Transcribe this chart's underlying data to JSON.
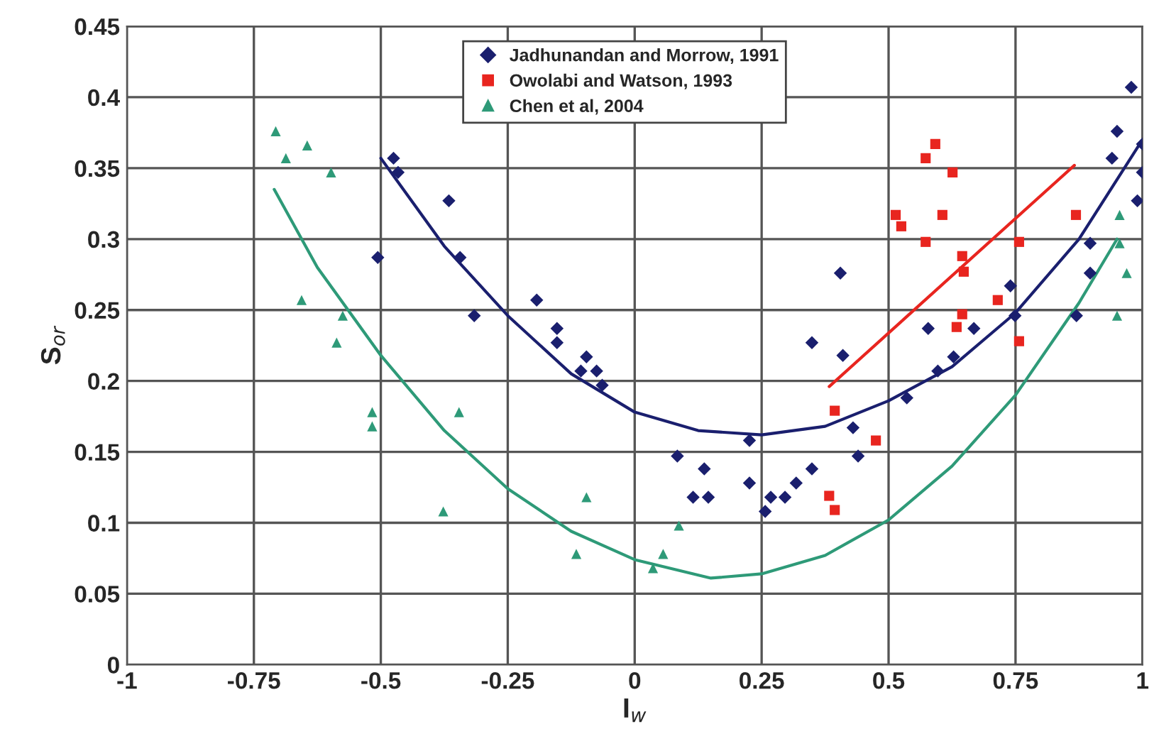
{
  "chart_data": {
    "type": "scatter",
    "xlabel": "I$_{w}$",
    "ylabel": "S$_{or}$",
    "xlim": [
      -1,
      1
    ],
    "ylim": [
      0,
      0.45
    ],
    "xticks": [
      -1,
      -0.75,
      -0.5,
      -0.25,
      0,
      0.25,
      0.5,
      0.75,
      1
    ],
    "yticks": [
      0,
      0.05,
      0.1,
      0.15,
      0.2,
      0.25,
      0.3,
      0.35,
      0.4,
      0.45
    ],
    "grid": true,
    "legend": "top",
    "series": [
      {
        "name": "Jadhunandan and Morrow, 1991",
        "color": "#1a1f6e",
        "marker": "diamond",
        "x": [
          -0.475,
          -0.466,
          -0.506,
          -0.366,
          -0.344,
          -0.316,
          -0.193,
          -0.153,
          -0.153,
          -0.095,
          -0.106,
          -0.075,
          -0.064,
          0.084,
          0.137,
          0.115,
          0.145,
          0.226,
          0.226,
          0.257,
          0.268,
          0.296,
          0.318,
          0.349,
          0.405,
          0.349,
          0.41,
          0.43,
          0.44,
          0.536,
          0.578,
          0.597,
          0.628,
          0.668,
          0.74,
          0.749,
          0.87,
          0.897,
          0.897,
          0.94,
          0.95,
          0.978,
          1.0,
          1.0,
          0.99
        ],
        "values": [
          0.357,
          0.347,
          0.287,
          0.327,
          0.287,
          0.246,
          0.257,
          0.237,
          0.227,
          0.217,
          0.207,
          0.207,
          0.197,
          0.147,
          0.138,
          0.118,
          0.118,
          0.158,
          0.128,
          0.108,
          0.118,
          0.118,
          0.128,
          0.138,
          0.276,
          0.227,
          0.218,
          0.167,
          0.147,
          0.188,
          0.237,
          0.207,
          0.217,
          0.237,
          0.267,
          0.246,
          0.246,
          0.297,
          0.276,
          0.357,
          0.376,
          0.407,
          0.367,
          0.347,
          0.327
        ]
      },
      {
        "name": "Owolabi and Watson, 1993",
        "color": "#e8251f",
        "marker": "square",
        "x": [
          0.592,
          0.573,
          0.626,
          0.514,
          0.525,
          0.606,
          0.573,
          0.757,
          0.869,
          0.645,
          0.648,
          0.715,
          0.645,
          0.634,
          0.757,
          0.394,
          0.475,
          0.383,
          0.394
        ],
        "values": [
          0.367,
          0.357,
          0.347,
          0.317,
          0.309,
          0.317,
          0.298,
          0.298,
          0.317,
          0.288,
          0.277,
          0.257,
          0.247,
          0.238,
          0.228,
          0.179,
          0.158,
          0.119,
          0.109
        ]
      },
      {
        "name": "Chen et al, 2004",
        "color": "#2e9a78",
        "marker": "triangle",
        "x": [
          -0.707,
          -0.645,
          -0.687,
          -0.598,
          -0.656,
          -0.575,
          -0.587,
          -0.517,
          -0.517,
          -0.346,
          -0.377,
          -0.095,
          -0.115,
          0.036,
          0.056,
          0.087,
          0.955,
          0.955,
          0.969,
          0.95
        ],
        "values": [
          0.376,
          0.366,
          0.357,
          0.347,
          0.257,
          0.246,
          0.227,
          0.178,
          0.168,
          0.178,
          0.108,
          0.118,
          0.078,
          0.068,
          0.078,
          0.098,
          0.317,
          0.297,
          0.276,
          0.246
        ]
      },
      {
        "type": "line",
        "color": "#1a1f6e",
        "x": [
          -0.5,
          -0.375,
          -0.25,
          -0.125,
          0,
          0.125,
          0.25,
          0.375,
          0.5,
          0.625,
          0.75,
          0.875,
          1.0
        ],
        "values": [
          0.357,
          0.295,
          0.246,
          0.205,
          0.178,
          0.165,
          0.162,
          0.168,
          0.186,
          0.21,
          0.248,
          0.3,
          0.37
        ]
      },
      {
        "type": "line",
        "color": "#e8251f",
        "x": [
          0.383,
          0.866
        ],
        "values": [
          0.196,
          0.352
        ]
      },
      {
        "type": "line",
        "color": "#2e9a78",
        "x": [
          -0.71,
          -0.625,
          -0.5,
          -0.375,
          -0.25,
          -0.125,
          0,
          0.15,
          0.25,
          0.375,
          0.5,
          0.625,
          0.75,
          0.875,
          0.95
        ],
        "values": [
          0.335,
          0.28,
          0.218,
          0.165,
          0.124,
          0.094,
          0.074,
          0.061,
          0.064,
          0.077,
          0.102,
          0.14,
          0.19,
          0.255,
          0.3
        ]
      }
    ]
  }
}
